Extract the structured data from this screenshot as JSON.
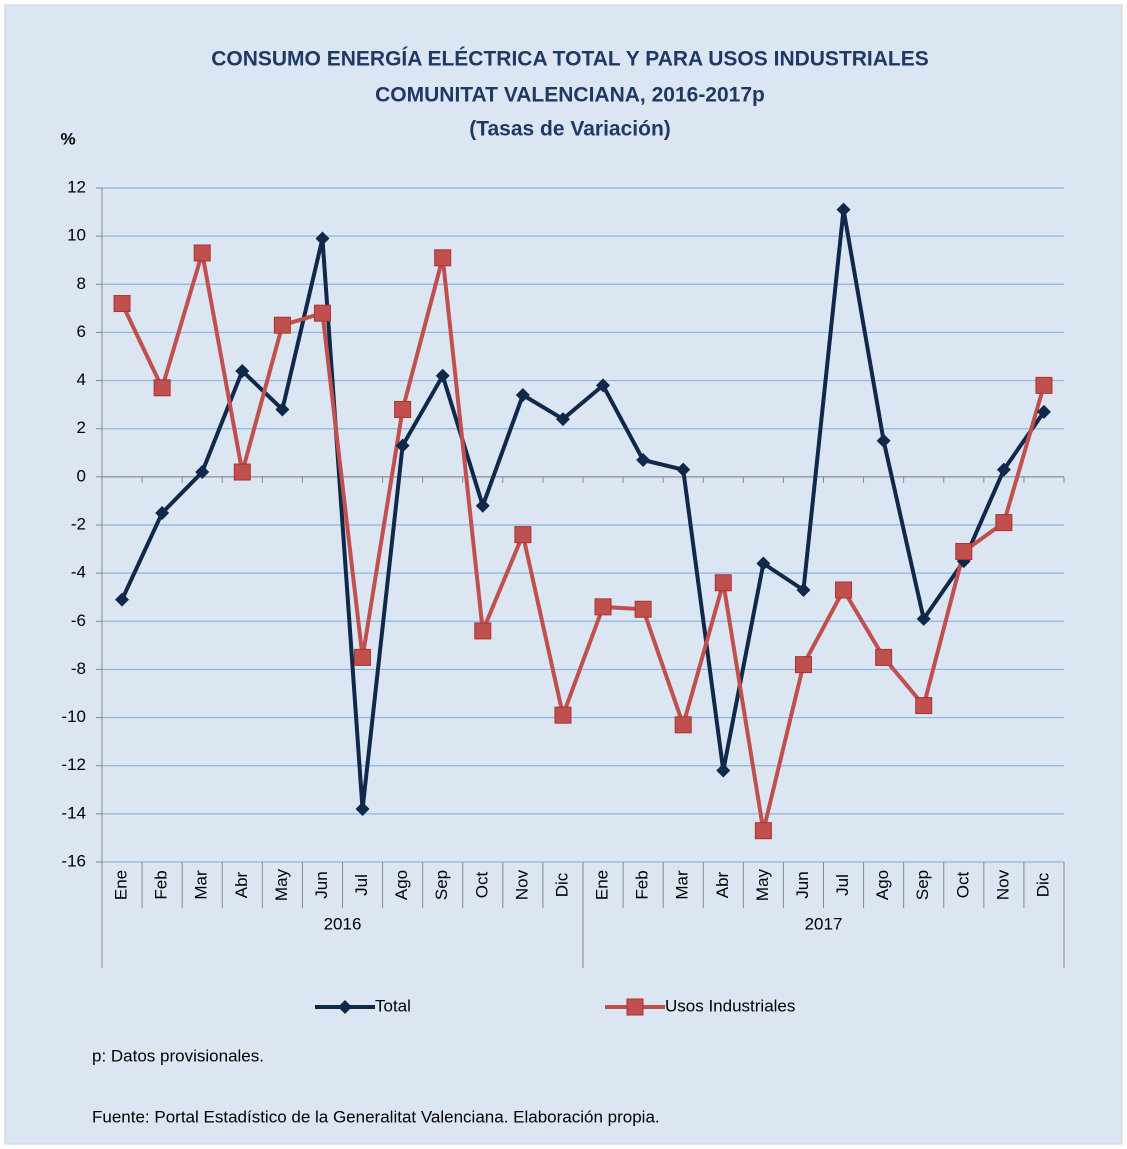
{
  "chart_data": {
    "type": "line",
    "title": [
      "CONSUMO ENERGÍA ELÉCTRICA TOTAL Y PARA USOS INDUSTRIALES",
      "COMUNITAT VALENCIANA, 2016-2017p",
      "(Tasas de Variación)"
    ],
    "y_label": "%",
    "categories": [
      "Ene",
      "Feb",
      "Mar",
      "Abr",
      "May",
      "Jun",
      "Jul",
      "Ago",
      "Sep",
      "Oct",
      "Nov",
      "Dic",
      "Ene",
      "Feb",
      "Mar",
      "Abr",
      "May",
      "Jun",
      "Jul",
      "Ago",
      "Sep",
      "Oct",
      "Nov",
      "Dic"
    ],
    "groups": [
      "2016",
      "2017"
    ],
    "series": [
      {
        "name": "Total",
        "color": "#10284a",
        "marker": "diamond",
        "values": [
          -5.1,
          -1.5,
          0.2,
          4.4,
          2.8,
          9.9,
          -13.8,
          1.3,
          4.2,
          -1.2,
          3.4,
          2.4,
          3.8,
          0.7,
          0.3,
          -12.2,
          -3.6,
          -4.7,
          11.1,
          1.5,
          -5.9,
          -3.5,
          0.3,
          2.7
        ]
      },
      {
        "name": "Usos Industriales",
        "color": "#c0504d",
        "marker": "square",
        "values": [
          7.2,
          3.7,
          9.3,
          0.2,
          6.3,
          6.8,
          -7.5,
          2.8,
          9.1,
          -6.4,
          -2.4,
          -9.9,
          -5.4,
          -5.5,
          -10.3,
          -4.4,
          -14.7,
          -7.8,
          -4.7,
          -7.5,
          -9.5,
          -3.1,
          -1.9,
          3.8
        ]
      }
    ],
    "ylim": [
      -16,
      12
    ],
    "yticks": [
      -16,
      -14,
      -12,
      -10,
      -8,
      -6,
      -4,
      -2,
      0,
      2,
      4,
      6,
      8,
      10,
      12
    ],
    "grid": true,
    "legend": "bottom",
    "notes": [
      "p: Datos provisionales.",
      "Fuente: Portal Estadístico de la Generalitat Valenciana. Elaboración propia."
    ]
  }
}
